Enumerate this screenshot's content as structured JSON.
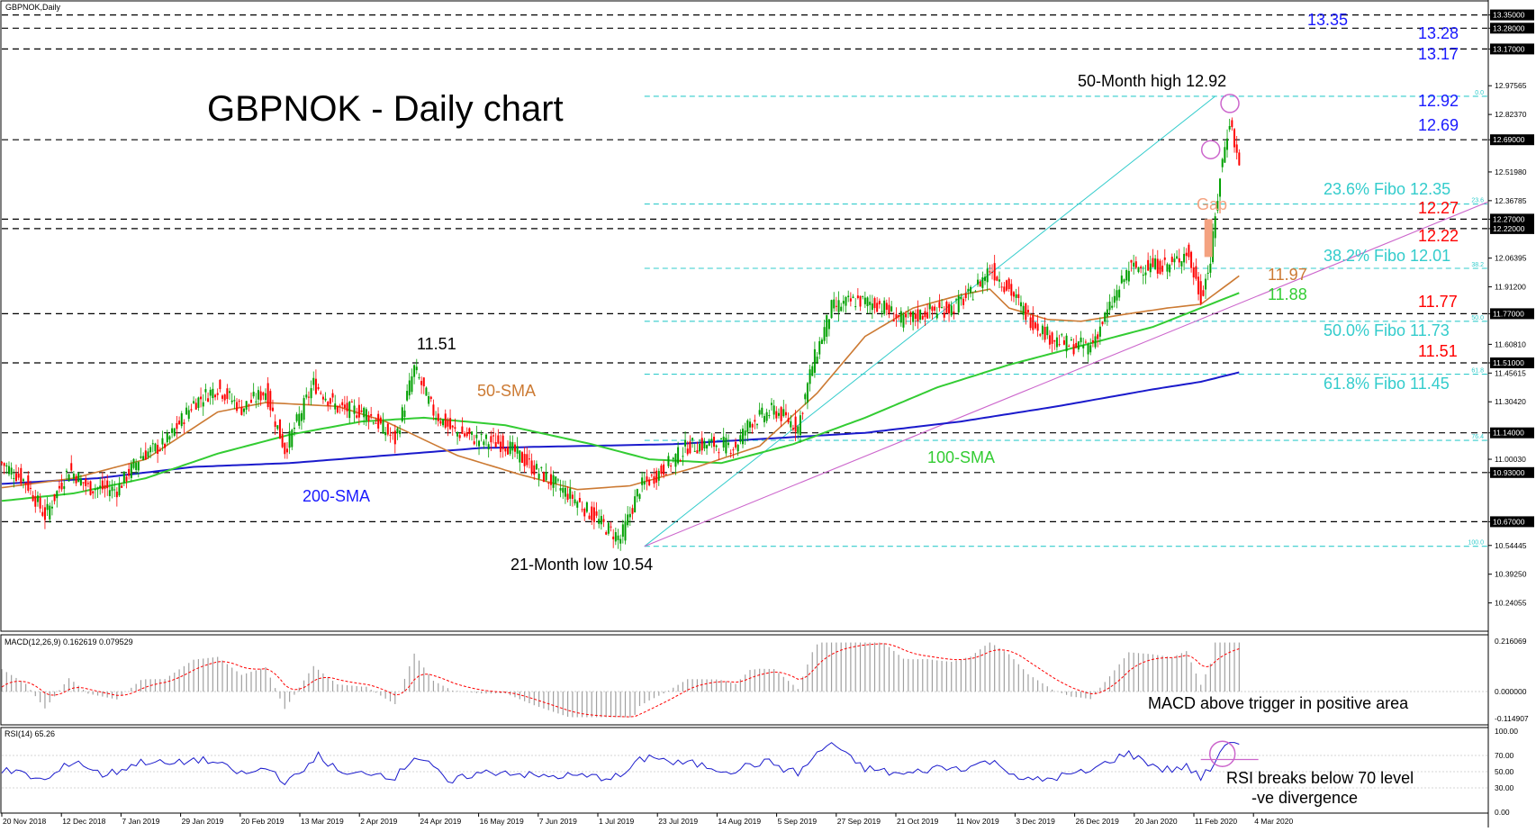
{
  "chart_data": {
    "type": "line",
    "symbol_label": "GBPNOK,Daily",
    "title": "GBPNOK - Daily chart",
    "colors": {
      "up_candle": "#00a000",
      "down_candle": "#ff0000",
      "sma50": "#cc7a33",
      "sma100": "#33cc33",
      "sma200": "#1a1acc",
      "fibo": "#33cccc",
      "resistance_blue": "#1a1aff",
      "resistance_red": "#ff0000",
      "gap": "#f4a280",
      "trendline": "#cc66cc"
    },
    "price_axis": {
      "ylim": [
        10.11,
        13.41
      ],
      "ticks": [
        "13.35000",
        "13.28000",
        "13.17000",
        "12.97565",
        "12.82370",
        "12.69000",
        "12.51980",
        "12.36785",
        "12.27000",
        "12.22000",
        "12.06395",
        "11.91200",
        "11.77000",
        "11.60810",
        "11.51000",
        "11.45615",
        "11.30420",
        "11.14000",
        "11.00030",
        "10.93000",
        "10.67000",
        "10.54445",
        "10.39250",
        "10.24055"
      ]
    },
    "date_axis": [
      "20 Nov 2018",
      "12 Dec 2018",
      "7 Jan 2019",
      "29 Jan 2019",
      "20 Feb 2019",
      "13 Mar 2019",
      "2 Apr 2019",
      "24 Apr 2019",
      "16 May 2019",
      "7 Jun 2019",
      "1 Jul 2019",
      "23 Jul 2019",
      "14 Aug 2019",
      "5 Sep 2019",
      "27 Sep 2019",
      "21 Oct 2019",
      "11 Nov 2019",
      "3 Dec 2019",
      "26 Dec 2019",
      "20 Jan 2020",
      "11 Feb 2020",
      "4 Mar 2020"
    ],
    "close_path_points": [
      [
        0,
        10.98
      ],
      [
        10,
        10.88
      ],
      [
        18,
        10.7
      ],
      [
        28,
        10.95
      ],
      [
        36,
        10.85
      ],
      [
        48,
        10.84
      ],
      [
        58,
        11.02
      ],
      [
        68,
        11.08
      ],
      [
        80,
        11.3
      ],
      [
        90,
        11.38
      ],
      [
        100,
        11.27
      ],
      [
        110,
        11.36
      ],
      [
        118,
        11.05
      ],
      [
        130,
        11.4
      ],
      [
        140,
        11.27
      ],
      [
        152,
        11.25
      ],
      [
        164,
        11.1
      ],
      [
        172,
        11.48
      ],
      [
        180,
        11.25
      ],
      [
        188,
        11.15
      ],
      [
        200,
        11.1
      ],
      [
        210,
        11.08
      ],
      [
        222,
        10.95
      ],
      [
        238,
        10.8
      ],
      [
        250,
        10.66
      ],
      [
        258,
        10.58
      ],
      [
        266,
        10.85
      ],
      [
        276,
        10.95
      ],
      [
        286,
        11.07
      ],
      [
        298,
        11.08
      ],
      [
        306,
        11.07
      ],
      [
        312,
        11.2
      ],
      [
        322,
        11.26
      ],
      [
        332,
        11.17
      ],
      [
        338,
        11.5
      ],
      [
        346,
        11.8
      ],
      [
        356,
        11.84
      ],
      [
        366,
        11.82
      ],
      [
        376,
        11.73
      ],
      [
        386,
        11.78
      ],
      [
        396,
        11.8
      ],
      [
        404,
        11.87
      ],
      [
        412,
        12.01
      ],
      [
        420,
        11.9
      ],
      [
        428,
        11.75
      ],
      [
        438,
        11.64
      ],
      [
        446,
        11.6
      ],
      [
        454,
        11.6
      ],
      [
        462,
        11.8
      ],
      [
        470,
        12.01
      ],
      [
        478,
        12.02
      ],
      [
        488,
        12.03
      ],
      [
        494,
        12.1
      ],
      [
        500,
        11.86
      ],
      [
        504,
        12.05
      ],
      [
        508,
        12.5
      ],
      [
        512,
        12.8
      ],
      [
        516,
        12.55
      ]
    ],
    "sma50_points": [
      [
        0,
        10.85
      ],
      [
        30,
        10.9
      ],
      [
        60,
        11.0
      ],
      [
        90,
        11.25
      ],
      [
        110,
        11.3
      ],
      [
        140,
        11.28
      ],
      [
        160,
        11.2
      ],
      [
        190,
        11.02
      ],
      [
        216,
        10.92
      ],
      [
        240,
        10.84
      ],
      [
        262,
        10.86
      ],
      [
        290,
        10.96
      ],
      [
        316,
        11.07
      ],
      [
        340,
        11.35
      ],
      [
        360,
        11.65
      ],
      [
        380,
        11.8
      ],
      [
        400,
        11.87
      ],
      [
        412,
        11.9
      ],
      [
        420,
        11.8
      ],
      [
        436,
        11.74
      ],
      [
        450,
        11.73
      ],
      [
        470,
        11.77
      ],
      [
        486,
        11.8
      ],
      [
        500,
        11.82
      ],
      [
        516,
        11.97
      ]
    ],
    "sma100_points": [
      [
        0,
        10.78
      ],
      [
        30,
        10.82
      ],
      [
        60,
        10.9
      ],
      [
        90,
        11.03
      ],
      [
        120,
        11.13
      ],
      [
        150,
        11.2
      ],
      [
        176,
        11.22
      ],
      [
        210,
        11.18
      ],
      [
        246,
        11.08
      ],
      [
        270,
        11.0
      ],
      [
        300,
        10.98
      ],
      [
        330,
        11.08
      ],
      [
        360,
        11.22
      ],
      [
        390,
        11.38
      ],
      [
        420,
        11.5
      ],
      [
        450,
        11.6
      ],
      [
        480,
        11.7
      ],
      [
        500,
        11.8
      ],
      [
        516,
        11.88
      ]
    ],
    "sma200_points": [
      [
        0,
        10.87
      ],
      [
        40,
        10.9
      ],
      [
        80,
        10.96
      ],
      [
        120,
        10.98
      ],
      [
        160,
        11.02
      ],
      [
        200,
        11.06
      ],
      [
        240,
        11.07
      ],
      [
        280,
        11.08
      ],
      [
        320,
        11.11
      ],
      [
        360,
        11.14
      ],
      [
        400,
        11.2
      ],
      [
        440,
        11.28
      ],
      [
        480,
        11.37
      ],
      [
        500,
        11.41
      ],
      [
        516,
        11.46
      ]
    ],
    "horizontal_levels": [
      13.35,
      13.28,
      13.17,
      12.69,
      12.27,
      12.22,
      11.77,
      11.51,
      11.14,
      10.93,
      10.67
    ],
    "fibo_levels": [
      {
        "ratio": "0.0",
        "price": 12.92
      },
      {
        "ratio": "23.6",
        "price": 12.35
      },
      {
        "ratio": "38.2",
        "price": 12.01
      },
      {
        "ratio": "50.0",
        "price": 11.73
      },
      {
        "ratio": "61.8",
        "price": 11.45
      },
      {
        "ratio": "76.4",
        "price": 11.1
      },
      {
        "ratio": "100.0",
        "price": 10.54
      }
    ],
    "gap": {
      "label": "Gap",
      "from": 12.07,
      "to": 12.27
    },
    "annotations": {
      "r1335": "13.35",
      "r1328": "13.28",
      "r1317": "13.17",
      "high_label": "50-Month high 12.92",
      "r1292": "12.92",
      "r1269": "12.69",
      "fibo236": "23.6% Fibo 12.35",
      "r1227": "12.27",
      "r1222": "12.22",
      "fibo382": "38.2% Fibo 12.01",
      "sma50_val": "11.97",
      "sma100_val": "11.88",
      "r1177": "11.77",
      "fibo500": "50.0% Fibo 11.73",
      "r1151": "11.51",
      "fibo618": "61.8% Fibo 11.45",
      "peak_1151": "11.51",
      "sma50_label": "50-SMA",
      "sma100_label": "100-SMA",
      "sma200_label": "200-SMA",
      "low_label": "21-Month low 10.54"
    },
    "macd": {
      "label": "MACD(12,26,9) 0.162619 0.079529",
      "ticks": [
        "0.216069",
        "0.000000",
        "-0.114907"
      ],
      "annotation": "MACD above trigger in positive area"
    },
    "rsi": {
      "label": "RSI(14) 65.26",
      "ticks": [
        "100.00",
        "70.00",
        "50.00",
        "30.00",
        "0.00"
      ],
      "annotation_line1": "RSI breaks below 70 level",
      "annotation_line2": "-ve divergence"
    }
  }
}
